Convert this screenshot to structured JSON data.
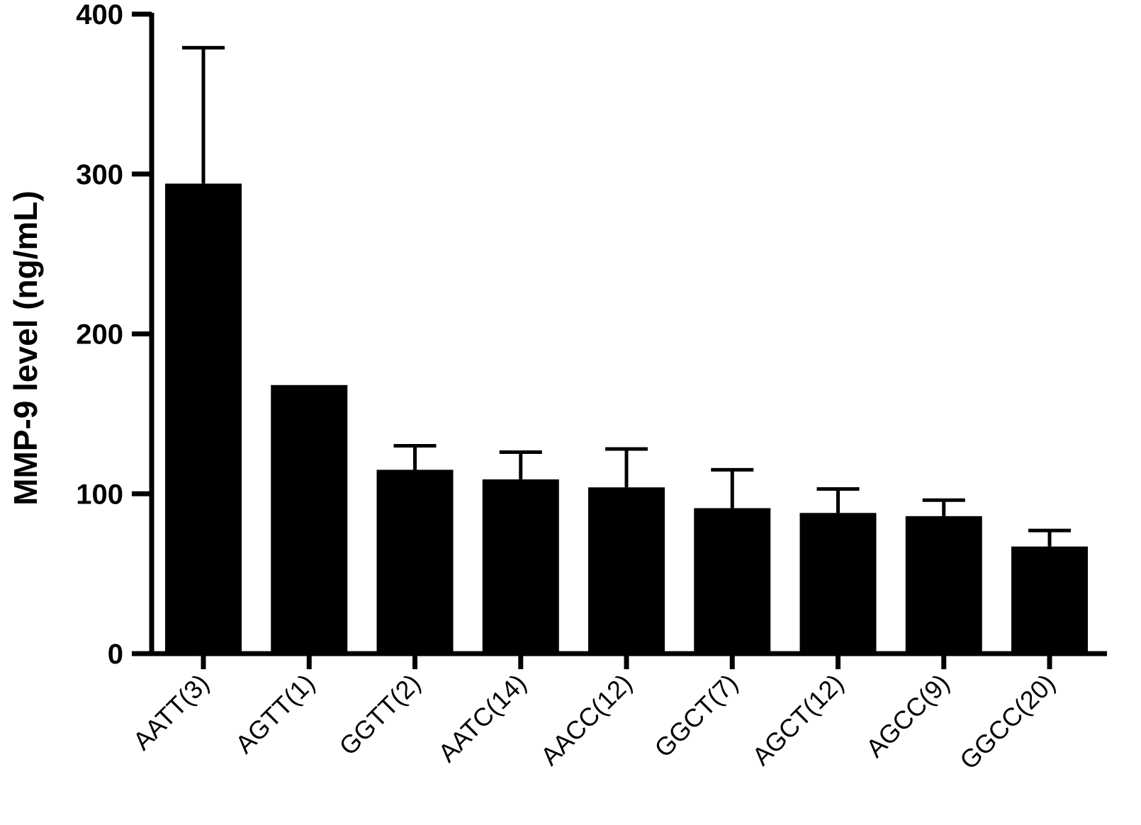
{
  "chart_data": {
    "type": "bar",
    "title": "",
    "xlabel": "",
    "ylabel": "MMP-9 level (ng/mL)",
    "ylim": [
      0,
      400
    ],
    "yticks": [
      0,
      100,
      200,
      300,
      400
    ],
    "categories": [
      "AATT(3)",
      "AGTT(1)",
      "GGTT(2)",
      "AATC(14)",
      "AACC(12)",
      "GGCT(7)",
      "AGCT(12)",
      "AGCC(9)",
      "GGCC(20)"
    ],
    "series": [
      {
        "values": [
          294,
          168,
          115,
          109,
          104,
          91,
          88,
          86,
          67
        ],
        "error_upper": [
          85,
          0,
          15,
          17,
          24,
          24,
          15,
          10,
          10
        ]
      }
    ],
    "grid": false,
    "legend": "none",
    "bar_color": "#000000"
  }
}
